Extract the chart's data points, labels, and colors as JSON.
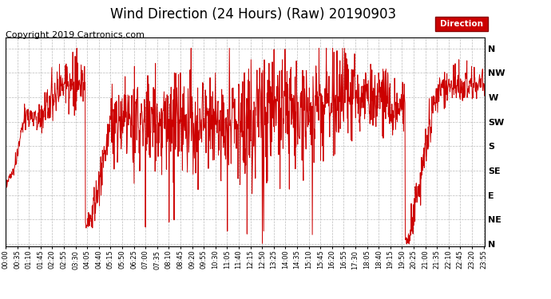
{
  "title": "Wind Direction (24 Hours) (Raw) 20190903",
  "copyright": "Copyright 2019 Cartronics.com",
  "legend_label": "Direction",
  "legend_bg": "#cc0000",
  "legend_text_color": "#ffffff",
  "line_color": "#cc0000",
  "bg_color": "#ffffff",
  "plot_bg_color": "#ffffff",
  "grid_color": "#bbbbbb",
  "ytick_labels": [
    "N",
    "NW",
    "W",
    "SW",
    "S",
    "SE",
    "E",
    "NE",
    "N"
  ],
  "ytick_values": [
    360,
    315,
    270,
    225,
    180,
    135,
    90,
    45,
    0
  ],
  "ylim": [
    -5,
    380
  ],
  "title_fontsize": 12,
  "copyright_fontsize": 8,
  "seed": 42
}
